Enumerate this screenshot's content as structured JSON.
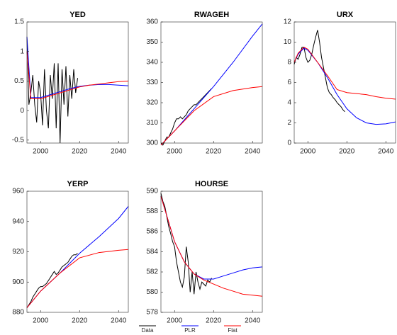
{
  "chart_data": [
    {
      "type": "line",
      "title": "YED",
      "xlim": [
        1993,
        2045
      ],
      "xticks": [
        2000,
        2020,
        2040
      ],
      "ylim": [
        -0.55,
        1.5
      ],
      "yticks": [
        -0.5,
        0,
        0.5,
        1,
        1.5
      ],
      "series": [
        {
          "name": "Data",
          "color": "#000000",
          "x": [
            1993,
            1994,
            1995,
            1996,
            1997,
            1998,
            1999,
            2000,
            2001,
            2002,
            2003,
            2004,
            2005,
            2006,
            2007,
            2008,
            2009,
            2010,
            2011,
            2012,
            2013,
            2014,
            2015,
            2016,
            2017,
            2018,
            2019
          ],
          "values": [
            1.25,
            0.1,
            0.3,
            0.6,
            0.1,
            -0.2,
            0.5,
            0.3,
            -0.25,
            0.7,
            0.0,
            -0.3,
            0.6,
            0.2,
            0.8,
            -0.3,
            0.8,
            -0.55,
            0.7,
            0.1,
            0.75,
            -0.1,
            0.6,
            0.2,
            0.7,
            0.3,
            0.55
          ]
        },
        {
          "name": "PLR",
          "color": "#0000ff",
          "x": [
            1993,
            1995,
            2000,
            2005,
            2010,
            2015,
            2020,
            2025,
            2030,
            2035,
            2040,
            2045
          ],
          "values": [
            1.25,
            0.22,
            0.22,
            0.27,
            0.32,
            0.37,
            0.41,
            0.43,
            0.44,
            0.44,
            0.43,
            0.42
          ]
        },
        {
          "name": "Flat",
          "color": "#ff0000",
          "x": [
            1993,
            1995,
            2000,
            2005,
            2010,
            2015,
            2020,
            2025,
            2030,
            2035,
            2040,
            2045
          ],
          "values": [
            1.0,
            0.2,
            0.2,
            0.25,
            0.3,
            0.35,
            0.4,
            0.43,
            0.45,
            0.47,
            0.49,
            0.5
          ]
        }
      ]
    },
    {
      "type": "line",
      "title": "RWAGEH",
      "xlim": [
        1993,
        2045
      ],
      "xticks": [
        2000,
        2020,
        2040
      ],
      "ylim": [
        300,
        360
      ],
      "yticks": [
        300,
        310,
        320,
        330,
        340,
        350,
        360
      ],
      "series": [
        {
          "color": "#000000",
          "x": [
            1993,
            1994,
            1995,
            1996,
            1997,
            1998,
            1999,
            2000,
            2001,
            2002,
            2003,
            2004,
            2005,
            2006,
            2007,
            2008,
            2009,
            2010,
            2011,
            2012,
            2013,
            2014,
            2015,
            2016,
            2017,
            2018,
            2019
          ],
          "values": [
            300,
            299,
            301,
            303,
            303,
            305,
            307,
            310,
            312,
            312,
            313,
            312,
            313,
            314,
            316,
            317,
            318,
            319,
            319,
            320,
            321,
            322,
            323,
            324,
            325,
            326,
            327
          ]
        },
        {
          "color": "#0000ff",
          "x": [
            1993,
            2000,
            2010,
            2020,
            2030,
            2040,
            2045
          ],
          "values": [
            299,
            306,
            317,
            328,
            340,
            353,
            359
          ]
        },
        {
          "color": "#ff0000",
          "x": [
            1993,
            2000,
            2010,
            2020,
            2030,
            2040,
            2045
          ],
          "values": [
            299,
            306,
            316,
            323,
            326,
            327.5,
            328
          ]
        }
      ]
    },
    {
      "type": "line",
      "title": "URX",
      "xlim": [
        1993,
        2045
      ],
      "xticks": [
        2000,
        2020,
        2040
      ],
      "ylim": [
        0,
        12
      ],
      "yticks": [
        0,
        2,
        4,
        6,
        8,
        10,
        12
      ],
      "series": [
        {
          "color": "#000000",
          "x": [
            1993,
            1994,
            1995,
            1996,
            1997,
            1998,
            1999,
            2000,
            2001,
            2002,
            2003,
            2004,
            2005,
            2006,
            2007,
            2008,
            2009,
            2010,
            2011,
            2012,
            2013,
            2014,
            2015,
            2016,
            2017,
            2018,
            2019
          ],
          "values": [
            7.8,
            8.5,
            8.3,
            8.8,
            9.5,
            9.5,
            8.5,
            8.0,
            8.2,
            8.8,
            9.7,
            10.5,
            11.2,
            10.0,
            8.5,
            7.5,
            6.5,
            5.5,
            5.0,
            4.8,
            4.5,
            4.3,
            4.0,
            3.8,
            3.6,
            3.3,
            3.1
          ]
        },
        {
          "color": "#0000ff",
          "x": [
            1993,
            1995,
            1998,
            2000,
            2005,
            2010,
            2015,
            2020,
            2025,
            2030,
            2035,
            2040,
            2045
          ],
          "values": [
            8,
            8.8,
            9.4,
            9.2,
            8,
            6.5,
            4.8,
            3.4,
            2.5,
            2.0,
            1.85,
            1.9,
            2.1
          ]
        },
        {
          "color": "#ff0000",
          "x": [
            1993,
            1995,
            1998,
            2000,
            2005,
            2010,
            2015,
            2020,
            2025,
            2030,
            2035,
            2040,
            2045
          ],
          "values": [
            8,
            8.9,
            9.5,
            9.3,
            8,
            6.7,
            5.3,
            5.0,
            4.9,
            4.8,
            4.6,
            4.45,
            4.35
          ]
        }
      ]
    },
    {
      "type": "line",
      "title": "YERP",
      "xlim": [
        1993,
        2045
      ],
      "xticks": [
        2000,
        2020,
        2040
      ],
      "ylim": [
        880,
        960
      ],
      "yticks": [
        880,
        900,
        920,
        940,
        960
      ],
      "series": [
        {
          "color": "#000000",
          "x": [
            1993,
            1994,
            1995,
            1996,
            1997,
            1998,
            1999,
            2000,
            2001,
            2002,
            2003,
            2004,
            2005,
            2006,
            2007,
            2008,
            2009,
            2010,
            2011,
            2012,
            2013,
            2014,
            2015,
            2016,
            2017,
            2018,
            2019
          ],
          "values": [
            883,
            885,
            887,
            890,
            892,
            894,
            896,
            897,
            897,
            898,
            899,
            901,
            903,
            905,
            907,
            905,
            906,
            908,
            910,
            911,
            912,
            913,
            915,
            917,
            918,
            918,
            919
          ]
        },
        {
          "color": "#0000ff",
          "x": [
            1993,
            2000,
            2010,
            2020,
            2030,
            2040,
            2045
          ],
          "values": [
            883,
            894,
            906,
            919,
            930,
            942,
            950
          ]
        },
        {
          "color": "#ff0000",
          "x": [
            1993,
            2000,
            2010,
            2020,
            2030,
            2040,
            2045
          ],
          "values": [
            883,
            894,
            906,
            916,
            919.5,
            921,
            921.5
          ]
        }
      ]
    },
    {
      "type": "line",
      "title": "HOURSE",
      "xlim": [
        1993,
        2045
      ],
      "xticks": [
        2000,
        2020,
        2040
      ],
      "ylim": [
        578,
        590
      ],
      "yticks": [
        578,
        580,
        582,
        584,
        586,
        588,
        590
      ],
      "series": [
        {
          "color": "#000000",
          "x": [
            1993,
            1994,
            1995,
            1996,
            1997,
            1998,
            1999,
            2000,
            2001,
            2002,
            2003,
            2004,
            2005,
            2006,
            2007,
            2008,
            2009,
            2010,
            2011,
            2012,
            2013,
            2014,
            2015,
            2016,
            2017,
            2018,
            2019
          ],
          "values": [
            589.8,
            589,
            588.5,
            587.5,
            586.5,
            585.8,
            585,
            584.5,
            583,
            582,
            581,
            580.5,
            581.5,
            584.5,
            583,
            580,
            582,
            579.8,
            582,
            581,
            580.3,
            581,
            580.8,
            580.6,
            581.2,
            581,
            581.4
          ]
        },
        {
          "color": "#0000ff",
          "x": [
            1993,
            2000,
            2005,
            2010,
            2015,
            2020,
            2025,
            2030,
            2035,
            2040,
            2045
          ],
          "values": [
            589.5,
            585,
            583,
            581.8,
            581.3,
            581.3,
            581.6,
            581.9,
            582.2,
            582.4,
            582.5
          ]
        },
        {
          "color": "#ff0000",
          "x": [
            1993,
            2000,
            2005,
            2010,
            2015,
            2020,
            2025,
            2030,
            2035,
            2040,
            2045
          ],
          "values": [
            589.5,
            585,
            583,
            581.8,
            581.2,
            580.8,
            580.4,
            580.1,
            579.8,
            579.7,
            579.6
          ]
        }
      ]
    }
  ]
}
